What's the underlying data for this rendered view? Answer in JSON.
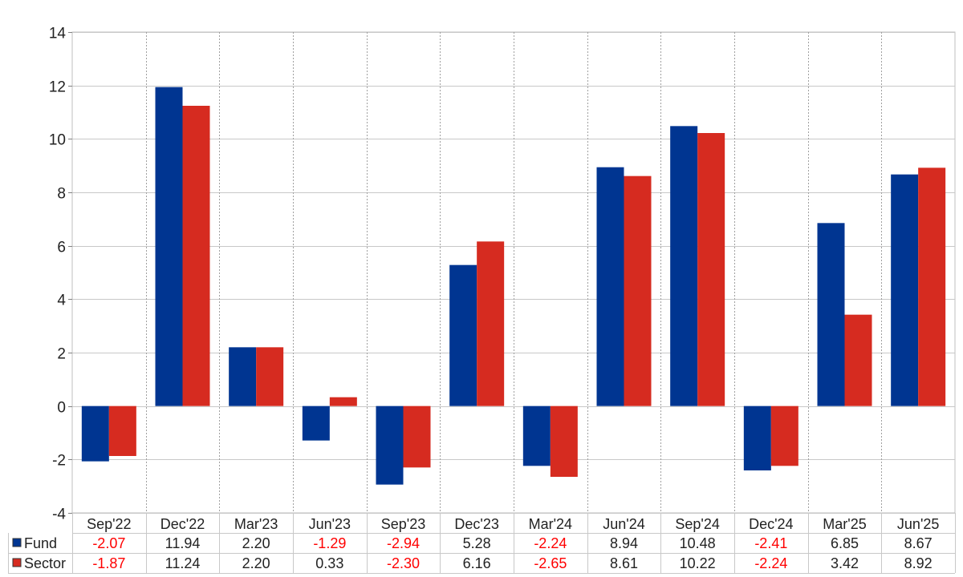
{
  "chart_data": {
    "type": "bar",
    "categories": [
      "Sep'22",
      "Dec'22",
      "Mar'23",
      "Jun'23",
      "Sep'23",
      "Dec'23",
      "Mar'24",
      "Jun'24",
      "Sep'24",
      "Dec'24",
      "Mar'25",
      "Jun'25"
    ],
    "series": [
      {
        "name": "Fund",
        "color": "#003591",
        "values": [
          -2.07,
          11.94,
          2.2,
          -1.29,
          -2.94,
          5.28,
          -2.24,
          8.94,
          10.48,
          -2.41,
          6.85,
          8.67
        ]
      },
      {
        "name": "Sector",
        "color": "#d62b20",
        "values": [
          -1.87,
          11.24,
          2.2,
          0.33,
          -2.3,
          6.16,
          -2.65,
          8.61,
          10.22,
          -2.24,
          3.42,
          8.92
        ]
      }
    ],
    "ylim": [
      -4,
      14
    ],
    "yticks": [
      -4,
      -2,
      0,
      2,
      4,
      6,
      8,
      10,
      12,
      14
    ],
    "grid": true,
    "legend": "data-table",
    "negative_value_color": "#ff0000",
    "title": "",
    "xlabel": "",
    "ylabel": ""
  }
}
